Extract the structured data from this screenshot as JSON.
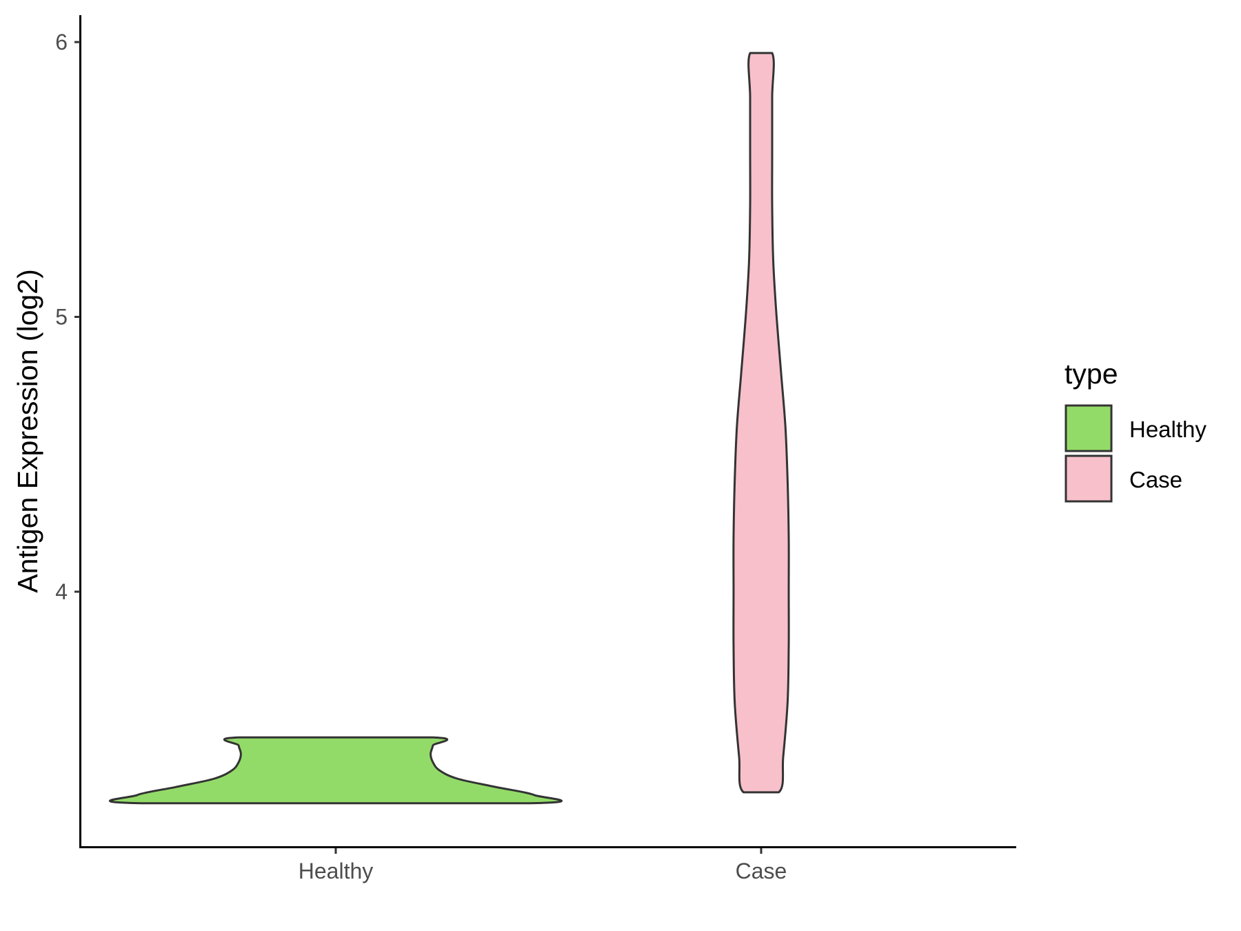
{
  "chart_data": {
    "type": "violin",
    "ylabel": "Antigen Expression (log2)",
    "xlabel": "",
    "ylim": [
      3.07,
      6.1
    ],
    "yticks": [
      4,
      5,
      6
    ],
    "categories": [
      "Healthy",
      "Case"
    ],
    "series": [
      {
        "name": "Healthy",
        "color": "#93db69",
        "density": [
          [
            3.23,
            0.88
          ],
          [
            3.26,
            0.9
          ],
          [
            3.29,
            0.72
          ],
          [
            3.32,
            0.55
          ],
          [
            3.35,
            0.47
          ],
          [
            3.38,
            0.44
          ],
          [
            3.41,
            0.43
          ],
          [
            3.44,
            0.44
          ],
          [
            3.47,
            0.44
          ]
        ]
      },
      {
        "name": "Case",
        "color": "#f7c0cb",
        "density": [
          [
            3.27,
            0.08
          ],
          [
            3.4,
            0.1
          ],
          [
            3.6,
            0.12
          ],
          [
            3.8,
            0.125
          ],
          [
            4.0,
            0.125
          ],
          [
            4.2,
            0.125
          ],
          [
            4.4,
            0.12
          ],
          [
            4.6,
            0.11
          ],
          [
            4.8,
            0.09
          ],
          [
            5.0,
            0.07
          ],
          [
            5.2,
            0.055
          ],
          [
            5.4,
            0.05
          ],
          [
            5.6,
            0.05
          ],
          [
            5.8,
            0.05
          ],
          [
            5.96,
            0.05
          ]
        ]
      }
    ],
    "legend": {
      "title": "type",
      "position": "right",
      "items": [
        {
          "label": "Healthy",
          "color": "#93db69"
        },
        {
          "label": "Case",
          "color": "#f7c0cb"
        }
      ]
    },
    "grid": false
  }
}
